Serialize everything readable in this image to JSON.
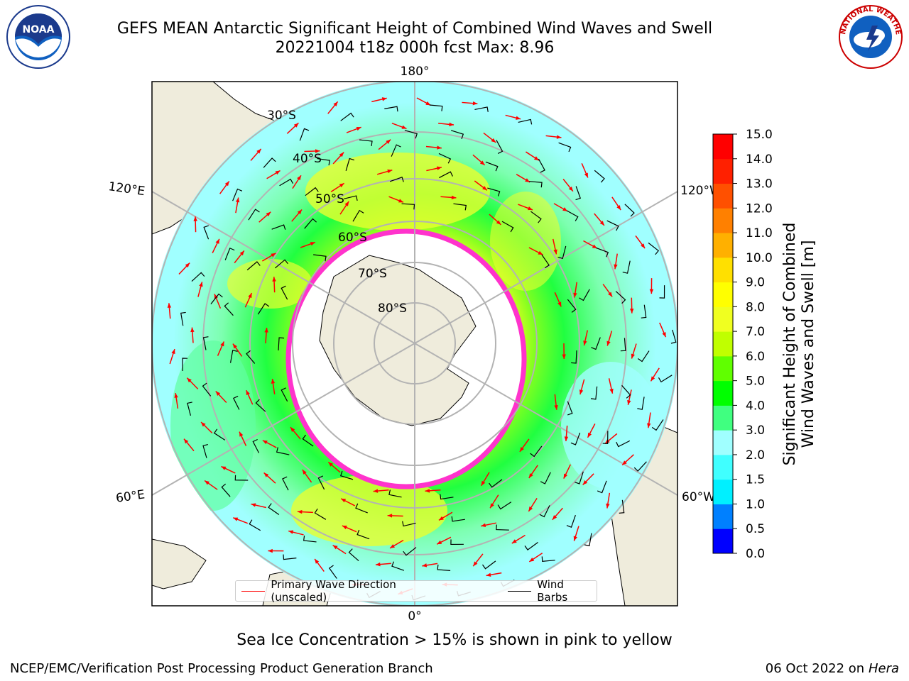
{
  "header": {
    "title_line1": "GEFS MEAN Antarctic Significant Height of Combined Wind Waves and Swell",
    "title_line2": "20221004 t18z 000h fcst   Max: 8.96"
  },
  "logos": {
    "left": {
      "icon": "noaa-logo",
      "text": "NOAA"
    },
    "right": {
      "icon": "nws-logo",
      "text": "NATIONAL WEATHER SERVICE"
    }
  },
  "map": {
    "longitude_labels": [
      "180°",
      "120°E",
      "120°W",
      "60°E",
      "60°W",
      "0°"
    ],
    "latitude_labels": [
      "30°S",
      "40°S",
      "50°S",
      "60°S",
      "70°S",
      "80°S"
    ],
    "colors": {
      "land": "#efecdc",
      "grid": "#b3b3b3",
      "wave_arrow": "#ff0000",
      "wind_barb": "#000000",
      "sea_ice_edge": "#ff33cc"
    }
  },
  "legend": {
    "items": [
      {
        "label": "Primary Wave Direction (unscaled)",
        "color": "#ff0000"
      },
      {
        "label": "Wind Barbs",
        "color": "#000000"
      }
    ]
  },
  "colorbar": {
    "label_line1": "Significant Height of Combined",
    "label_line2": "Wind Waves and Swell [m]",
    "ticks": [
      "0.0",
      "0.5",
      "1.0",
      "1.5",
      "2.0",
      "3.0",
      "4.0",
      "5.0",
      "6.0",
      "7.0",
      "8.0",
      "9.0",
      "10.0",
      "11.0",
      "12.0",
      "13.0",
      "14.0",
      "15.0"
    ],
    "colors": [
      "#0000ff",
      "#0080ff",
      "#00f0ff",
      "#40ffff",
      "#a0ffff",
      "#40ff80",
      "#00ff00",
      "#60ff00",
      "#c0ff00",
      "#f0ff20",
      "#ffff00",
      "#ffe000",
      "#ffb000",
      "#ff8000",
      "#ff5000",
      "#ff2000",
      "#ff0000"
    ]
  },
  "notes": {
    "sea_ice": "Sea Ice Concentration > 15% is shown in pink to yellow"
  },
  "footer": {
    "left": "NCEP/EMC/Verification Post Processing Product Generation Branch",
    "right_date": "06 Oct 2022 on",
    "right_host": "Hera"
  }
}
